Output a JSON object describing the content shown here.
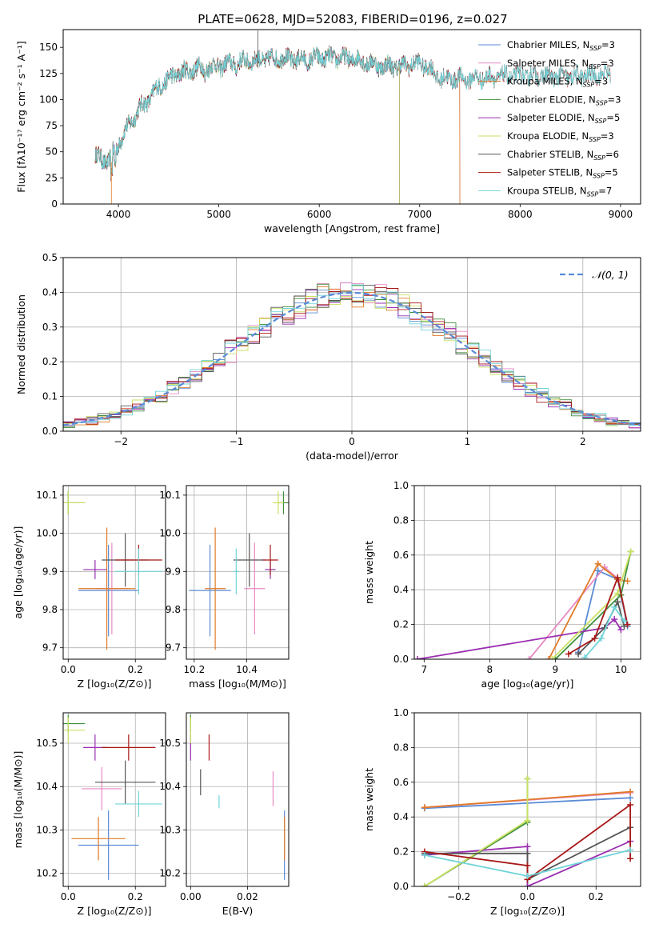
{
  "figure_title": "PLATE=0628, MJD=52083, FIBERID=0196, z=0.027",
  "colors": {
    "Chabrier MILES": "#5b8bd6",
    "Salpeter MILES": "#e78ac3",
    "Kroupa MILES": "#e07b27",
    "Chabrier ELODIE": "#3f8f3f",
    "Salpeter ELODIE": "#9a2fb0",
    "Kroupa ELODIE": "#c9e060",
    "Chabrier STELIB": "#555555",
    "Salpeter STELIB": "#a81818",
    "Kroupa STELIB": "#70d4d8"
  },
  "chart_data": [
    {
      "id": "spectrum",
      "type": "line",
      "title": "",
      "xlabel": "wavelength [Angstrom, rest frame]",
      "ylabel": "Flux [fλ10⁻¹⁷ erg cm⁻² s⁻¹ A⁻¹]",
      "xlim": [
        3450,
        9200
      ],
      "ylim": [
        0,
        167
      ],
      "xticks": [
        4000,
        5000,
        6000,
        7000,
        8000,
        9000
      ],
      "yticks": [
        0,
        25,
        50,
        75,
        100,
        125,
        150
      ],
      "grid": false,
      "legend": "top-right",
      "continuum": {
        "x": [
          3800,
          3900,
          4000,
          4100,
          4200,
          4300,
          4400,
          4500,
          4600,
          4800,
          5000,
          5200,
          5400,
          5600,
          5800,
          6000,
          6200,
          6400,
          6600,
          6800,
          7000,
          7100,
          7200,
          7500,
          8000,
          8500,
          9000
        ],
        "y": [
          45,
          40,
          58,
          75,
          90,
          100,
          112,
          120,
          125,
          130,
          132,
          136,
          138,
          140,
          138,
          140,
          140,
          138,
          132,
          132,
          135,
          130,
          120,
          120,
          123,
          122,
          125
        ]
      },
      "series": [
        {
          "name": "Chabrier MILES, N",
          "sub": "SSP",
          "suffix": "=3",
          "xmax": 7400
        },
        {
          "name": "Salpeter MILES, N",
          "sub": "SSP",
          "suffix": "=3",
          "xmax": 7400
        },
        {
          "name": "Kroupa MILES, N",
          "sub": "SSP",
          "suffix": "=3",
          "xmax": 7400
        },
        {
          "name": "Chabrier ELODIE, N",
          "sub": "SSP",
          "suffix": "=3",
          "xmax": 6800
        },
        {
          "name": "Salpeter ELODIE, N",
          "sub": "SSP",
          "suffix": "=5",
          "xmax": 6800
        },
        {
          "name": "Kroupa ELODIE, N",
          "sub": "SSP",
          "suffix": "=3",
          "xmax": 6800
        },
        {
          "name": "Chabrier STELIB, N",
          "sub": "SSP",
          "suffix": "=6",
          "xmax": 8900
        },
        {
          "name": "Salpeter STELIB, N",
          "sub": "SSP",
          "suffix": "=5",
          "xmax": 8900
        },
        {
          "name": "Kroupa STELIB, N",
          "sub": "SSP",
          "suffix": "=7",
          "xmax": 8900
        }
      ]
    },
    {
      "id": "residuals",
      "type": "line",
      "title": "",
      "xlabel": "(data-model)/error",
      "ylabel": "Normed distribution",
      "xlim": [
        -2.5,
        2.5
      ],
      "ylim": [
        0,
        0.5
      ],
      "xticks": [
        -2,
        -1,
        0,
        1,
        2
      ],
      "xtick_labels": [
        "−2",
        "−1",
        "0",
        "1",
        "2"
      ],
      "yticks": [
        0.0,
        0.1,
        0.2,
        0.3,
        0.4,
        0.5
      ],
      "grid": true,
      "legend": "top-right",
      "reference": {
        "name": "𝒩(0, 1)",
        "mean": 0,
        "sigma": 1
      },
      "bin_width": 0.1
    },
    {
      "id": "age-vs-Z",
      "type": "scatter",
      "xlabel": "Z [log₁₀(Z/Z⊙)]",
      "ylabel": "age  [log₁₀(age/yr)]",
      "xlim": [
        -0.015,
        0.29
      ],
      "ylim": [
        9.67,
        10.125
      ],
      "xticks": [
        0.0,
        0.2
      ],
      "yticks": [
        9.7,
        9.8,
        9.9,
        10.0,
        10.1
      ],
      "grid": true,
      "points": [
        {
          "name": "Chabrier MILES",
          "x": 0.12,
          "xerr": 0.09,
          "y": 9.85,
          "yerr": 0.12
        },
        {
          "name": "Salpeter MILES",
          "x": 0.13,
          "xerr": 0.05,
          "y": 9.855,
          "yerr": 0.12
        },
        {
          "name": "Kroupa MILES",
          "x": 0.115,
          "xerr": 0.085,
          "y": 9.855,
          "yerr": 0.16
        },
        {
          "name": "Chabrier ELODIE",
          "x": 0.0,
          "xerr": 0.05,
          "y": 10.08,
          "yerr": 0.03
        },
        {
          "name": "Salpeter ELODIE",
          "x": 0.08,
          "xerr": 0.035,
          "y": 9.905,
          "yerr": 0.025
        },
        {
          "name": "Kroupa ELODIE",
          "x": 0.0,
          "xerr": 0.05,
          "y": 10.08,
          "yerr": 0.03
        },
        {
          "name": "Chabrier STELIB",
          "x": 0.17,
          "xerr": 0.07,
          "y": 9.93,
          "yerr": 0.07
        },
        {
          "name": "Salpeter STELIB",
          "x": 0.21,
          "xerr": 0.07,
          "y": 9.93,
          "yerr": 0.04
        },
        {
          "name": "Kroupa STELIB",
          "x": 0.21,
          "xerr": 0.07,
          "y": 9.9,
          "yerr": 0.06
        }
      ]
    },
    {
      "id": "age-vs-mass",
      "type": "scatter",
      "xlabel": "mass [log₁₀(M/M⊙)]",
      "ylabel": "",
      "xlim": [
        10.17,
        10.56
      ],
      "ylim": [
        9.67,
        10.125
      ],
      "xticks": [
        10.2,
        10.4
      ],
      "yticks": [
        9.7,
        9.8,
        9.9,
        10.0,
        10.1
      ],
      "grid": true,
      "points": [
        {
          "name": "Chabrier MILES",
          "x": 10.26,
          "xerr": 0.08,
          "y": 9.85,
          "yerr": 0.12
        },
        {
          "name": "Salpeter MILES",
          "x": 10.43,
          "xerr": 0.04,
          "y": 9.855,
          "yerr": 0.12
        },
        {
          "name": "Kroupa MILES",
          "x": 10.28,
          "xerr": 0.04,
          "y": 9.855,
          "yerr": 0.16
        },
        {
          "name": "Chabrier ELODIE",
          "x": 10.54,
          "xerr": 0.02,
          "y": 10.08,
          "yerr": 0.03
        },
        {
          "name": "Salpeter ELODIE",
          "x": 10.49,
          "xerr": 0.02,
          "y": 9.905,
          "yerr": 0.025
        },
        {
          "name": "Kroupa ELODIE",
          "x": 10.52,
          "xerr": 0.02,
          "y": 10.08,
          "yerr": 0.03
        },
        {
          "name": "Chabrier STELIB",
          "x": 10.41,
          "xerr": 0.06,
          "y": 9.93,
          "yerr": 0.07
        },
        {
          "name": "Salpeter STELIB",
          "x": 10.49,
          "xerr": 0.03,
          "y": 9.93,
          "yerr": 0.04
        },
        {
          "name": "Kroupa STELIB",
          "x": 10.36,
          "xerr": 0.01,
          "y": 9.9,
          "yerr": 0.06
        }
      ]
    },
    {
      "id": "massweight-vs-age",
      "type": "line",
      "xlabel": "age  [log₁₀(age/yr)]",
      "ylabel": "mass weight",
      "xlim": [
        6.85,
        10.3
      ],
      "ylim": [
        0,
        1
      ],
      "xticks": [
        7,
        8,
        9,
        10
      ],
      "yticks": [
        0.0,
        0.2,
        0.4,
        0.6,
        0.8,
        1.0
      ],
      "grid": true,
      "series": [
        {
          "name": "Chabrier MILES",
          "x": [
            9.35,
            9.65,
            9.95,
            10.1
          ],
          "y": [
            0.04,
            0.51,
            0.46,
            0.19
          ]
        },
        {
          "name": "Salpeter MILES",
          "x": [
            8.6,
            9.75,
            10.0
          ],
          "y": [
            0.0,
            0.53,
            0.45
          ]
        },
        {
          "name": "Kroupa MILES",
          "x": [
            8.9,
            9.65,
            9.95,
            10.1
          ],
          "y": [
            0.0,
            0.55,
            0.46,
            0.45
          ]
        },
        {
          "name": "Chabrier ELODIE",
          "x": [
            9.0,
            10.0,
            10.15
          ],
          "y": [
            0.0,
            0.37,
            0.62
          ]
        },
        {
          "name": "Salpeter ELODIE",
          "x": [
            6.9,
            9.75,
            9.9,
            10.0
          ],
          "y": [
            0.0,
            0.18,
            0.23,
            0.17
          ]
        },
        {
          "name": "Kroupa ELODIE",
          "x": [
            8.95,
            9.95,
            10.15
          ],
          "y": [
            0.0,
            0.38,
            0.62
          ]
        },
        {
          "name": "Chabrier STELIB",
          "x": [
            9.35,
            9.75,
            9.95,
            10.05
          ],
          "y": [
            0.03,
            0.18,
            0.33,
            0.19
          ]
        },
        {
          "name": "Salpeter STELIB",
          "x": [
            9.2,
            9.6,
            9.95,
            10.1
          ],
          "y": [
            0.03,
            0.12,
            0.47,
            0.2
          ]
        },
        {
          "name": "Kroupa STELIB",
          "x": [
            9.45,
            9.7,
            9.9,
            10.05
          ],
          "y": [
            0.01,
            0.12,
            0.3,
            0.22
          ]
        }
      ]
    },
    {
      "id": "mass-vs-Z",
      "type": "scatter",
      "xlabel": "Z [log₁₀(Z/Z⊙)]",
      "ylabel": "mass [log₁₀(M/M⊙)]",
      "xlim": [
        -0.015,
        0.29
      ],
      "ylim": [
        10.17,
        10.57
      ],
      "xticks": [
        0.0,
        0.2
      ],
      "yticks": [
        10.2,
        10.3,
        10.4,
        10.5
      ],
      "grid": true,
      "points": [
        {
          "name": "Chabrier MILES",
          "x": 0.12,
          "xerr": 0.09,
          "y": 10.265,
          "yerr": 0.08
        },
        {
          "name": "Salpeter MILES",
          "x": 0.1,
          "xerr": 0.06,
          "y": 10.395,
          "yerr": 0.05
        },
        {
          "name": "Kroupa MILES",
          "x": 0.09,
          "xerr": 0.08,
          "y": 10.28,
          "yerr": 0.05
        },
        {
          "name": "Chabrier ELODIE",
          "x": 0.0,
          "xerr": 0.05,
          "y": 10.545,
          "yerr": 0.02
        },
        {
          "name": "Salpeter ELODIE",
          "x": 0.08,
          "xerr": 0.035,
          "y": 10.49,
          "yerr": 0.03
        },
        {
          "name": "Kroupa ELODIE",
          "x": 0.0,
          "xerr": 0.05,
          "y": 10.53,
          "yerr": 0.03
        },
        {
          "name": "Chabrier STELIB",
          "x": 0.17,
          "xerr": 0.09,
          "y": 10.41,
          "yerr": 0.05
        },
        {
          "name": "Salpeter STELIB",
          "x": 0.18,
          "xerr": 0.08,
          "y": 10.49,
          "yerr": 0.03
        },
        {
          "name": "Kroupa STELIB",
          "x": 0.21,
          "xerr": 0.07,
          "y": 10.36,
          "yerr": 0.03
        }
      ]
    },
    {
      "id": "mass-vs-ebv",
      "type": "scatter",
      "xlabel": "E(B-V)",
      "ylabel": "",
      "xlim": [
        -0.0015,
        0.0345
      ],
      "ylim": [
        10.17,
        10.57
      ],
      "xticks": [
        0.0,
        0.02
      ],
      "yticks": [
        10.2,
        10.3,
        10.4,
        10.5
      ],
      "grid": true,
      "points": [
        {
          "name": "Chabrier MILES",
          "x": 0.033,
          "y": 10.265,
          "yerr": 0.08
        },
        {
          "name": "Salpeter MILES",
          "x": 0.029,
          "y": 10.395,
          "yerr": 0.04
        },
        {
          "name": "Kroupa MILES",
          "x": 0.033,
          "y": 10.28,
          "yerr": 0.05
        },
        {
          "name": "Chabrier ELODIE",
          "x": 0.0,
          "y": 10.545,
          "yerr": 0.02
        },
        {
          "name": "Salpeter ELODIE",
          "x": 0.0,
          "y": 10.49,
          "yerr": 0.03
        },
        {
          "name": "Kroupa ELODIE",
          "x": 0.0,
          "y": 10.53,
          "yerr": 0.03
        },
        {
          "name": "Chabrier STELIB",
          "x": 0.0035,
          "y": 10.41,
          "yerr": 0.03
        },
        {
          "name": "Salpeter STELIB",
          "x": 0.0065,
          "y": 10.49,
          "yerr": 0.03
        },
        {
          "name": "Kroupa STELIB",
          "x": 0.01,
          "y": 10.365,
          "yerr": 0.015
        }
      ]
    },
    {
      "id": "massweight-vs-Z",
      "type": "line",
      "xlabel": "Z [log₁₀(Z/Z⊙)]",
      "ylabel": "mass weight",
      "xlim": [
        -0.33,
        0.33
      ],
      "ylim": [
        0,
        1
      ],
      "xticks": [
        -0.2,
        0.0,
        0.2
      ],
      "xtick_labels": [
        "−0.2",
        "0.0",
        "0.2"
      ],
      "yticks": [
        0.0,
        0.2,
        0.4,
        0.6,
        0.8,
        1.0
      ],
      "grid": true,
      "series": [
        {
          "name": "Chabrier MILES",
          "x": [
            -0.3,
            0.3
          ],
          "y": [
            0.45,
            0.51
          ]
        },
        {
          "name": "Salpeter MILES",
          "x": [
            -0.3,
            0.3
          ],
          "y": [
            0.455,
            0.54
          ]
        },
        {
          "name": "Kroupa MILES",
          "x": [
            -0.3,
            0.3
          ],
          "y": [
            0.455,
            0.545
          ]
        },
        {
          "name": "Chabrier ELODIE",
          "x": [
            -0.3,
            0.0,
            0.0
          ],
          "y": [
            0.0,
            0.37,
            0.62
          ]
        },
        {
          "name": "Salpeter ELODIE",
          "x": [
            -0.3,
            0.0,
            0.0,
            0.3
          ],
          "y": [
            0.18,
            0.23,
            0.0,
            0.26
          ]
        },
        {
          "name": "Kroupa ELODIE",
          "x": [
            -0.3,
            0.0,
            0.0
          ],
          "y": [
            0.0,
            0.38,
            0.62
          ]
        },
        {
          "name": "Chabrier STELIB",
          "x": [
            -0.3,
            0.0,
            0.0,
            0.3
          ],
          "y": [
            0.19,
            0.19,
            0.04,
            0.34
          ]
        },
        {
          "name": "Salpeter STELIB",
          "x": [
            -0.3,
            0.0,
            0.0,
            0.3,
            0.3
          ],
          "y": [
            0.2,
            0.12,
            0.04,
            0.47,
            0.16
          ]
        },
        {
          "name": "Kroupa STELIB",
          "x": [
            -0.3,
            0.0,
            0.3
          ],
          "y": [
            0.18,
            0.06,
            0.21
          ]
        }
      ]
    }
  ]
}
